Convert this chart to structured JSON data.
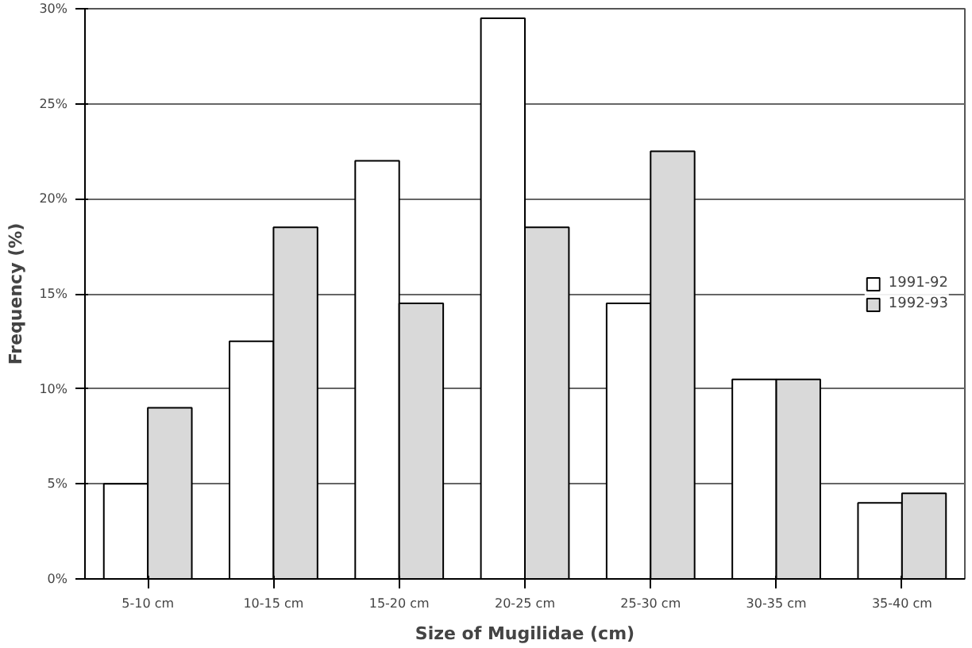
{
  "chart_data": {
    "type": "bar",
    "xlabel": "Size of Mugilidae (cm)",
    "ylabel": "Frequency (%)",
    "categories": [
      "5-10 cm",
      "10-15 cm",
      "15-20 cm",
      "20-25 cm",
      "25-30 cm",
      "30-35 cm",
      "35-40 cm"
    ],
    "series": [
      {
        "name": "1991-92",
        "color": "#ffffff",
        "values": [
          5,
          12.5,
          22,
          29.5,
          14.5,
          10.5,
          4
        ]
      },
      {
        "name": "1992-93",
        "color": "#d9d9d9",
        "values": [
          9,
          18.5,
          14.5,
          18.5,
          22.5,
          10.5,
          4.5
        ]
      }
    ],
    "ylim": [
      0,
      30
    ],
    "yticks": [
      {
        "value": 0,
        "label": "0%"
      },
      {
        "value": 5,
        "label": "5%"
      },
      {
        "value": 10,
        "label": "10%"
      },
      {
        "value": 15,
        "label": "15%"
      },
      {
        "value": 20,
        "label": "20%"
      },
      {
        "value": 25,
        "label": "25%"
      },
      {
        "value": 30,
        "label": "30%"
      }
    ],
    "grid": "y",
    "legend": "right"
  }
}
